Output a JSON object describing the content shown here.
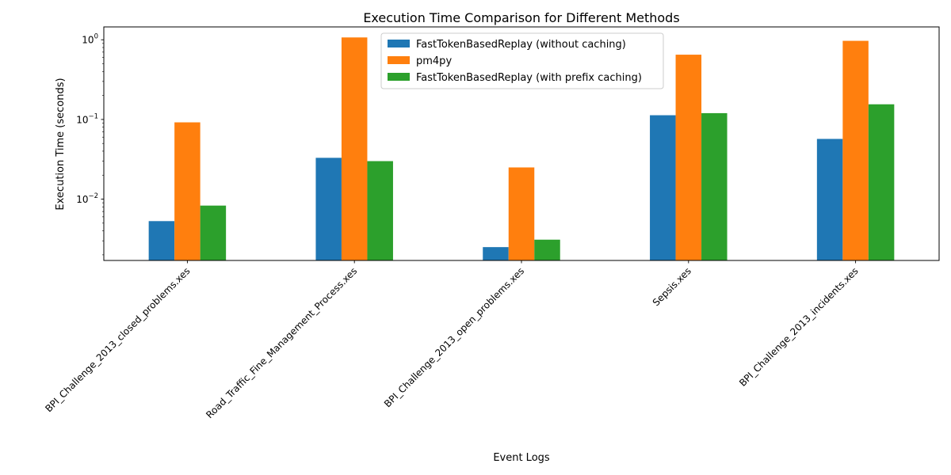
{
  "chart_data": {
    "type": "bar",
    "title": "Execution Time Comparison for Different Methods",
    "xlabel": "Event Logs",
    "ylabel": "Execution Time (seconds)",
    "yscale": "log",
    "ylim": [
      0.0017,
      1.45
    ],
    "yticks": [
      {
        "value": 0.01,
        "base": "10",
        "exp": "−2"
      },
      {
        "value": 0.1,
        "base": "10",
        "exp": "−1"
      },
      {
        "value": 1,
        "base": "10",
        "exp": "0"
      }
    ],
    "grid": false,
    "legend_position": "top-center",
    "categories": [
      "BPI_Challenge_2013_closed_problems.xes",
      "Road_Traffic_Fine_Management_Process.xes",
      "BPI_Challenge_2013_open_problems.xes",
      "Sepsis.xes",
      "BPI_Challenge_2013_incidents.xes"
    ],
    "series": [
      {
        "name": "FastTokenBasedReplay (without caching)",
        "color": "#1f77b4",
        "values": [
          0.0053,
          0.033,
          0.0025,
          0.113,
          0.057
        ]
      },
      {
        "name": "pm4py",
        "color": "#ff7f0e",
        "values": [
          0.092,
          1.07,
          0.025,
          0.65,
          0.97
        ]
      },
      {
        "name": "FastTokenBasedReplay (with prefix caching)",
        "color": "#2ca02c",
        "values": [
          0.0083,
          0.03,
          0.0031,
          0.12,
          0.155
        ]
      }
    ]
  }
}
